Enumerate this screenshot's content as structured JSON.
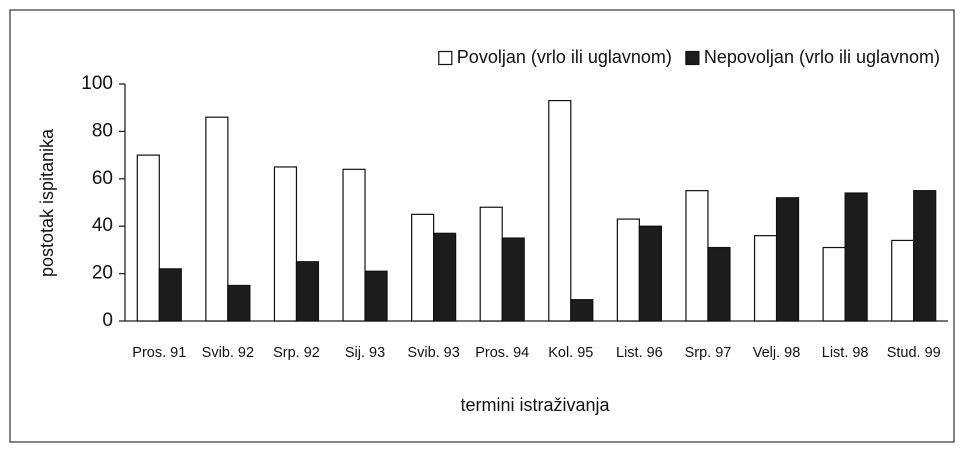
{
  "chart_data": {
    "type": "bar",
    "xlabel": "termini istraživanja",
    "ylabel": "postotak ispitanika",
    "categories": [
      "Pros. 91",
      "Svib. 92",
      "Srp. 92",
      "Sij. 93",
      "Svib. 93",
      "Pros. 94",
      "Kol. 95",
      "List. 96",
      "Srp. 97",
      "Velj. 98",
      "List. 98",
      "Stud. 99"
    ],
    "series": [
      {
        "name": "Povoljan (vrlo ili uglavnom)",
        "color": "#ffffff",
        "values": [
          70,
          86,
          65,
          64,
          45,
          48,
          93,
          43,
          55,
          36,
          31,
          34
        ]
      },
      {
        "name": "Nepovoljan (vrlo ili uglavnom)",
        "color": "#1c1c1c",
        "values": [
          22,
          15,
          25,
          21,
          37,
          35,
          9,
          40,
          31,
          52,
          54,
          55
        ]
      }
    ],
    "ylim": [
      0,
      100
    ],
    "yticks": [
      0,
      20,
      40,
      60,
      80,
      100
    ],
    "grid": false,
    "legend": "top-right"
  }
}
